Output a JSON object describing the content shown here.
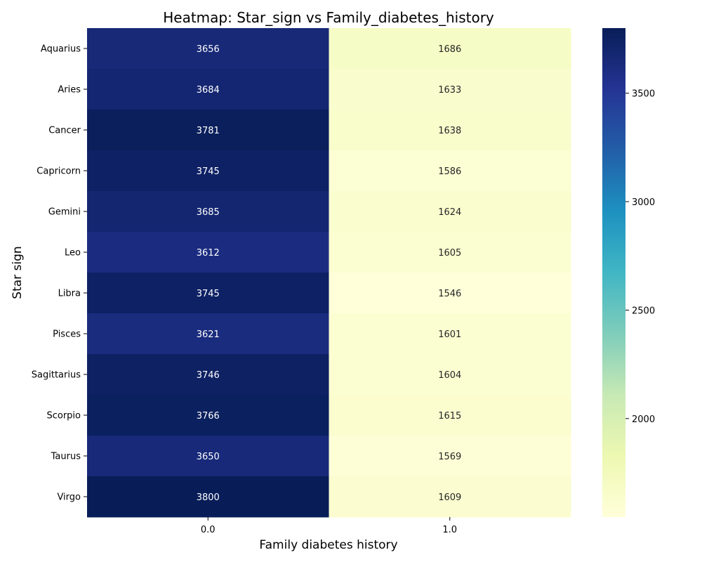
{
  "chart_data": {
    "type": "heatmap",
    "title": "Heatmap: Star_sign vs Family_diabetes_history",
    "xlabel": "Family diabetes history",
    "ylabel": "Star sign",
    "x_categories": [
      "0.0",
      "1.0"
    ],
    "y_categories": [
      "Aquarius",
      "Aries",
      "Cancer",
      "Capricorn",
      "Gemini",
      "Leo",
      "Libra",
      "Pisces",
      "Sagittarius",
      "Scorpio",
      "Taurus",
      "Virgo"
    ],
    "values": [
      [
        3656,
        1686
      ],
      [
        3684,
        1633
      ],
      [
        3781,
        1638
      ],
      [
        3745,
        1586
      ],
      [
        3685,
        1624
      ],
      [
        3612,
        1605
      ],
      [
        3745,
        1546
      ],
      [
        3621,
        1601
      ],
      [
        3746,
        1604
      ],
      [
        3766,
        1615
      ],
      [
        3650,
        1569
      ],
      [
        3800,
        1609
      ]
    ],
    "colormap": "YlGnBu",
    "colorbar": {
      "ticks": [
        2000,
        2500,
        3000,
        3500
      ],
      "range": [
        1546,
        3800
      ]
    },
    "annotation_light_color": "#ffffff",
    "annotation_dark_color": "#262626"
  }
}
